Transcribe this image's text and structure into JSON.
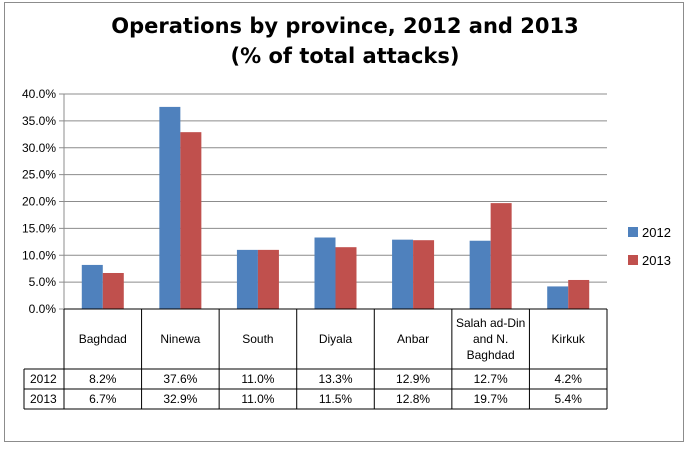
{
  "chart_data": {
    "type": "bar",
    "title_line1": "Operations by province, 2012 and 2013",
    "title_line2": "(% of total attacks)",
    "categories": [
      "Baghdad",
      "Ninewa",
      "South",
      "Diyala",
      "Anbar",
      "Salah ad-Din and N. Baghdad",
      "Kirkuk"
    ],
    "series": [
      {
        "name": "2012",
        "color": "#4f81bd",
        "values": [
          8.2,
          37.6,
          11.0,
          13.3,
          12.9,
          12.7,
          4.2
        ]
      },
      {
        "name": "2013",
        "color": "#c0504d",
        "values": [
          6.7,
          32.9,
          11.0,
          11.5,
          12.8,
          19.7,
          5.4
        ]
      }
    ],
    "table_rows": [
      {
        "label": "2012",
        "cells": [
          "8.2%",
          "37.6%",
          "11.0%",
          "13.3%",
          "12.9%",
          "12.7%",
          "4.2%"
        ]
      },
      {
        "label": "2013",
        "cells": [
          "6.7%",
          "32.9%",
          "11.0%",
          "11.5%",
          "12.8%",
          "19.7%",
          "5.4%"
        ]
      }
    ],
    "y_ticks": [
      "0.0%",
      "5.0%",
      "10.0%",
      "15.0%",
      "20.0%",
      "25.0%",
      "30.0%",
      "35.0%",
      "40.0%"
    ],
    "ylim": [
      0,
      40
    ],
    "grid": true,
    "legend": "right"
  }
}
